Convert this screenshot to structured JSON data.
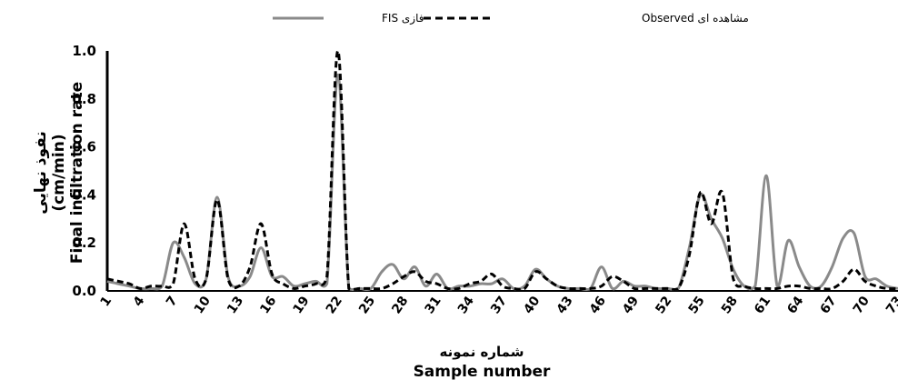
{
  "chart_data": {
    "type": "line",
    "x": [
      1,
      2,
      3,
      4,
      5,
      6,
      7,
      8,
      9,
      10,
      11,
      12,
      13,
      14,
      15,
      16,
      17,
      18,
      19,
      20,
      21,
      22,
      23,
      24,
      25,
      26,
      27,
      28,
      29,
      30,
      31,
      32,
      33,
      34,
      35,
      36,
      37,
      38,
      39,
      40,
      41,
      42,
      43,
      44,
      45,
      46,
      47,
      48,
      49,
      50,
      51,
      52,
      53,
      54,
      55,
      56,
      57,
      58,
      59,
      60,
      61,
      62,
      63,
      64,
      65,
      66,
      67,
      68,
      69,
      70,
      71,
      72,
      73
    ],
    "x_ticks": [
      "1",
      "4",
      "7",
      "10",
      "13",
      "16",
      "19",
      "22",
      "25",
      "28",
      "31",
      "34",
      "37",
      "40",
      "43",
      "46",
      "49",
      "52",
      "55",
      "58",
      "61",
      "64",
      "67",
      "70",
      "73"
    ],
    "y_ticks": [
      "0.0",
      "0.2",
      "0.4",
      "0.6",
      "0.8",
      "1.0"
    ],
    "ylim": [
      0,
      1.0
    ],
    "xlabel_fa": "شماره نمونه",
    "xlabel": "Sample number",
    "ylabel_fa": "نفوذ نهایی",
    "ylabel_unit": "(cm/min)",
    "ylabel": "Final infiltration rate",
    "legend": [
      {
        "label": "فازی FIS",
        "style": "solid",
        "color": "#8a8a8a"
      },
      {
        "label": "مشاهده ای Observed",
        "style": "dashed",
        "color": "#000000"
      }
    ],
    "series": [
      {
        "name": "فازی FIS",
        "color": "#8a8a8a",
        "style": "solid",
        "values": [
          0.04,
          0.03,
          0.02,
          0.01,
          0.01,
          0.02,
          0.2,
          0.14,
          0.03,
          0.05,
          0.39,
          0.06,
          0.02,
          0.06,
          0.18,
          0.06,
          0.06,
          0.02,
          0.03,
          0.04,
          0.03,
          0.9,
          0.01,
          0.01,
          0.01,
          0.08,
          0.11,
          0.05,
          0.1,
          0.02,
          0.07,
          0.01,
          0.02,
          0.02,
          0.03,
          0.03,
          0.05,
          0.01,
          0.02,
          0.09,
          0.05,
          0.02,
          0.01,
          0.01,
          0.01,
          0.1,
          0.01,
          0.04,
          0.02,
          0.02,
          0.01,
          0.01,
          0.01,
          0.18,
          0.4,
          0.3,
          0.22,
          0.09,
          0.02,
          0.02,
          0.48,
          0.02,
          0.21,
          0.1,
          0.02,
          0.02,
          0.1,
          0.22,
          0.24,
          0.06,
          0.05,
          0.02,
          0.01
        ]
      },
      {
        "name": "مشاهده ای Observed",
        "color": "#000000",
        "style": "dashed",
        "values": [
          0.05,
          0.04,
          0.03,
          0.01,
          0.02,
          0.02,
          0.03,
          0.28,
          0.05,
          0.05,
          0.38,
          0.05,
          0.02,
          0.1,
          0.28,
          0.07,
          0.03,
          0.01,
          0.02,
          0.03,
          0.06,
          1.0,
          0.01,
          0.01,
          0.01,
          0.01,
          0.03,
          0.06,
          0.08,
          0.04,
          0.03,
          0.01,
          0.01,
          0.03,
          0.04,
          0.07,
          0.02,
          0.01,
          0.01,
          0.08,
          0.05,
          0.02,
          0.01,
          0.01,
          0.01,
          0.02,
          0.06,
          0.04,
          0.01,
          0.01,
          0.01,
          0.01,
          0.01,
          0.15,
          0.41,
          0.28,
          0.41,
          0.05,
          0.02,
          0.01,
          0.01,
          0.01,
          0.02,
          0.02,
          0.01,
          0.01,
          0.01,
          0.04,
          0.09,
          0.04,
          0.02,
          0.01,
          0.01
        ]
      }
    ]
  }
}
